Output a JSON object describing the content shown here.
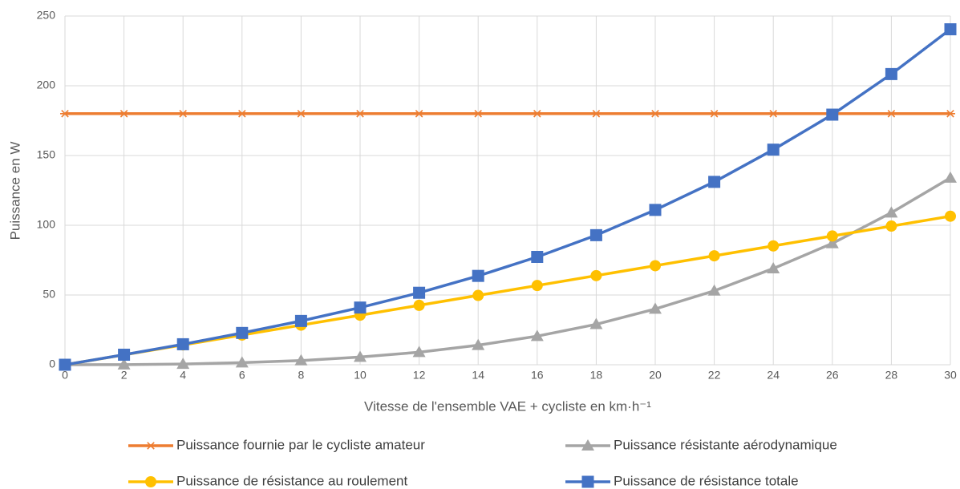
{
  "chart_data": {
    "type": "line",
    "x_label": "Vitesse de l'ensemble VAE + cycliste en km·h⁻¹",
    "y_label": "Puissance en W",
    "x": [
      0,
      2,
      4,
      6,
      8,
      10,
      12,
      14,
      16,
      18,
      20,
      22,
      24,
      26,
      28,
      30
    ],
    "xlim": [
      0,
      30
    ],
    "xticks": [
      0,
      2,
      4,
      6,
      8,
      10,
      12,
      14,
      16,
      18,
      20,
      22,
      24,
      26,
      28,
      30
    ],
    "ylim": [
      0,
      250
    ],
    "yticks": [
      0,
      50,
      100,
      150,
      200,
      250
    ],
    "grid": true,
    "legend": "bottom",
    "series": [
      {
        "name": "Puissance fournie par le cycliste amateur",
        "color": "#ed7d31",
        "marker": "asterisk",
        "values": [
          180,
          180,
          180,
          180,
          180,
          180,
          180,
          180,
          180,
          180,
          180,
          180,
          180,
          180,
          180,
          180
        ]
      },
      {
        "name": "Puissance résistante aérodynamique",
        "color": "#a5a5a5",
        "marker": "triangle",
        "values": [
          0,
          0.1,
          0.5,
          1.5,
          3,
          5.5,
          9,
          14,
          20.5,
          29,
          40,
          53,
          69,
          87,
          109,
          134
        ]
      },
      {
        "name": "Puissance de résistance au roulement",
        "color": "#ffc000",
        "marker": "circle",
        "values": [
          0,
          7.1,
          14.2,
          21.3,
          28.4,
          35.5,
          42.6,
          49.7,
          56.8,
          63.9,
          71,
          78.1,
          85.2,
          92.3,
          99.4,
          106.5
        ]
      },
      {
        "name": "Puissance de résistance totale",
        "color": "#4472c4",
        "marker": "square",
        "values": [
          0,
          7.2,
          14.7,
          22.8,
          31.4,
          41,
          51.6,
          63.7,
          77.3,
          92.9,
          111,
          131.1,
          154.2,
          179.3,
          208.4,
          240.5
        ]
      }
    ]
  }
}
